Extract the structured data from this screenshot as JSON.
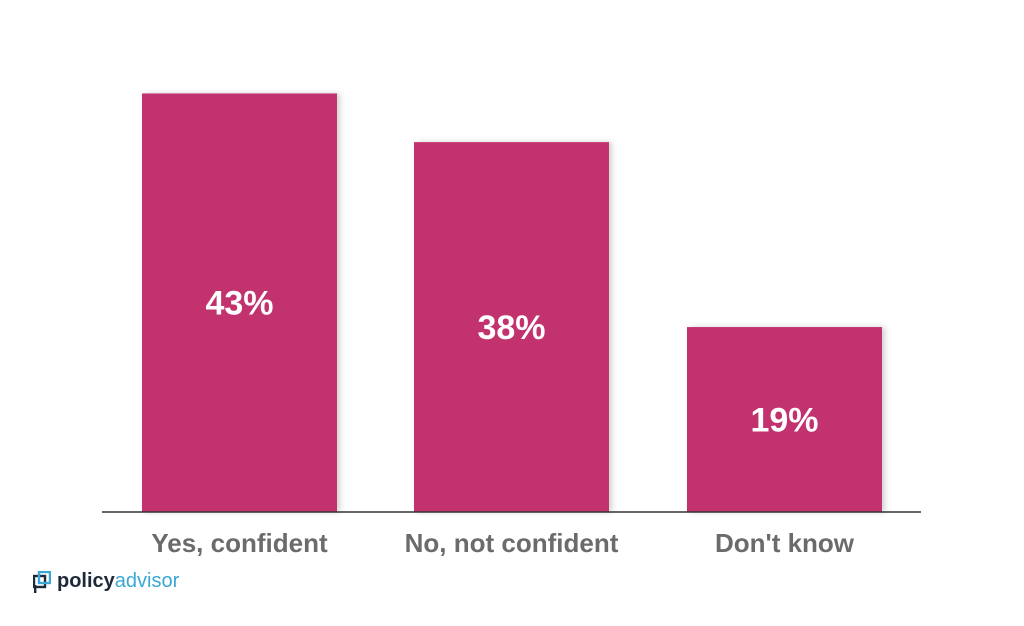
{
  "colors": {
    "bar": "#c2306e",
    "axis": "#333333",
    "category_text": "#6b6b6b",
    "value_text": "#ffffff",
    "logo_dark": "#1e2a3a",
    "logo_accent": "#3aa7d6"
  },
  "chart_data": {
    "type": "bar",
    "title": "",
    "xlabel": "",
    "ylabel": "",
    "categories": [
      "Yes, confident",
      "No, not confident",
      "Don't know"
    ],
    "values": [
      43,
      38,
      19
    ],
    "value_labels": [
      "43%",
      "38%",
      "19%"
    ],
    "ylim": [
      0,
      45
    ],
    "grid": false,
    "legend": "none"
  },
  "logo": {
    "icon": "policyadvisor-logo-icon",
    "part1": "policy",
    "part2": "advisor"
  }
}
